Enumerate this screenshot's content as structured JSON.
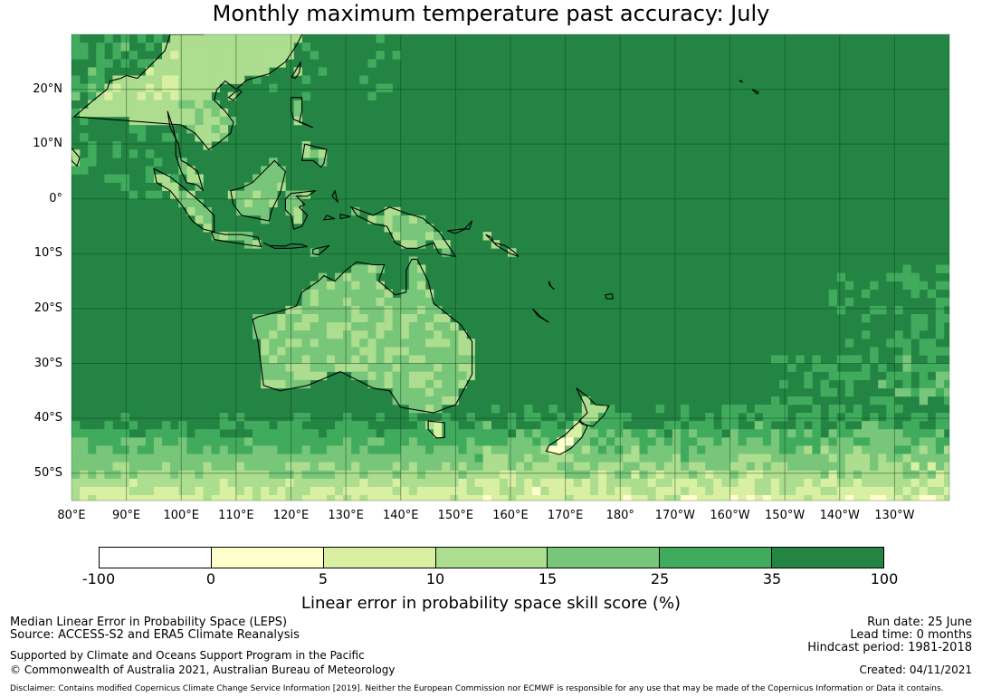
{
  "title": "Monthly maximum temperature past accuracy: July",
  "map": {
    "lat_ticks": [
      "20°N",
      "10°N",
      "0°",
      "10°S",
      "20°S",
      "30°S",
      "40°S",
      "50°S"
    ],
    "lon_ticks": [
      "80°E",
      "90°E",
      "100°E",
      "110°E",
      "120°E",
      "130°E",
      "140°E",
      "150°E",
      "160°E",
      "170°E",
      "180°",
      "170°W",
      "160°W",
      "150°W",
      "140°W",
      "130°W"
    ],
    "lat_range": [
      -55,
      30
    ],
    "lon_range_east": [
      80,
      240
    ]
  },
  "colorbar": {
    "ticks": [
      "-100",
      "0",
      "5",
      "10",
      "15",
      "25",
      "35",
      "100"
    ],
    "colors": [
      "#ffffff",
      "#ffffcc",
      "#d9f0a3",
      "#addd8e",
      "#78c679",
      "#41ab5d",
      "#238443"
    ],
    "title": "Linear error in probability space skill score (%)"
  },
  "footer": {
    "left1": "Median Linear Error in Probability Space (LEPS)",
    "left2": "Source: ACCESS-S2 and ERA5 Climate Reanalysis",
    "left3": "Supported by Climate and Oceans Support Program in the Pacific",
    "left4": "© Commonwealth of Australia 2021, Australian Bureau of Meteorology",
    "right1": "Run date: 25 June",
    "right2": "Lead time: 0 months",
    "right3": "Hindcast period: 1981-2018",
    "right4": "Created: 04/11/2021",
    "disclaimer": "Disclaimer: Contains modified Copernicus Climate Change Service Information [2019]. Neither the European Commission nor ECMWF is responsible for any use that may be made of the Copernicus Information or Data it contains."
  }
}
